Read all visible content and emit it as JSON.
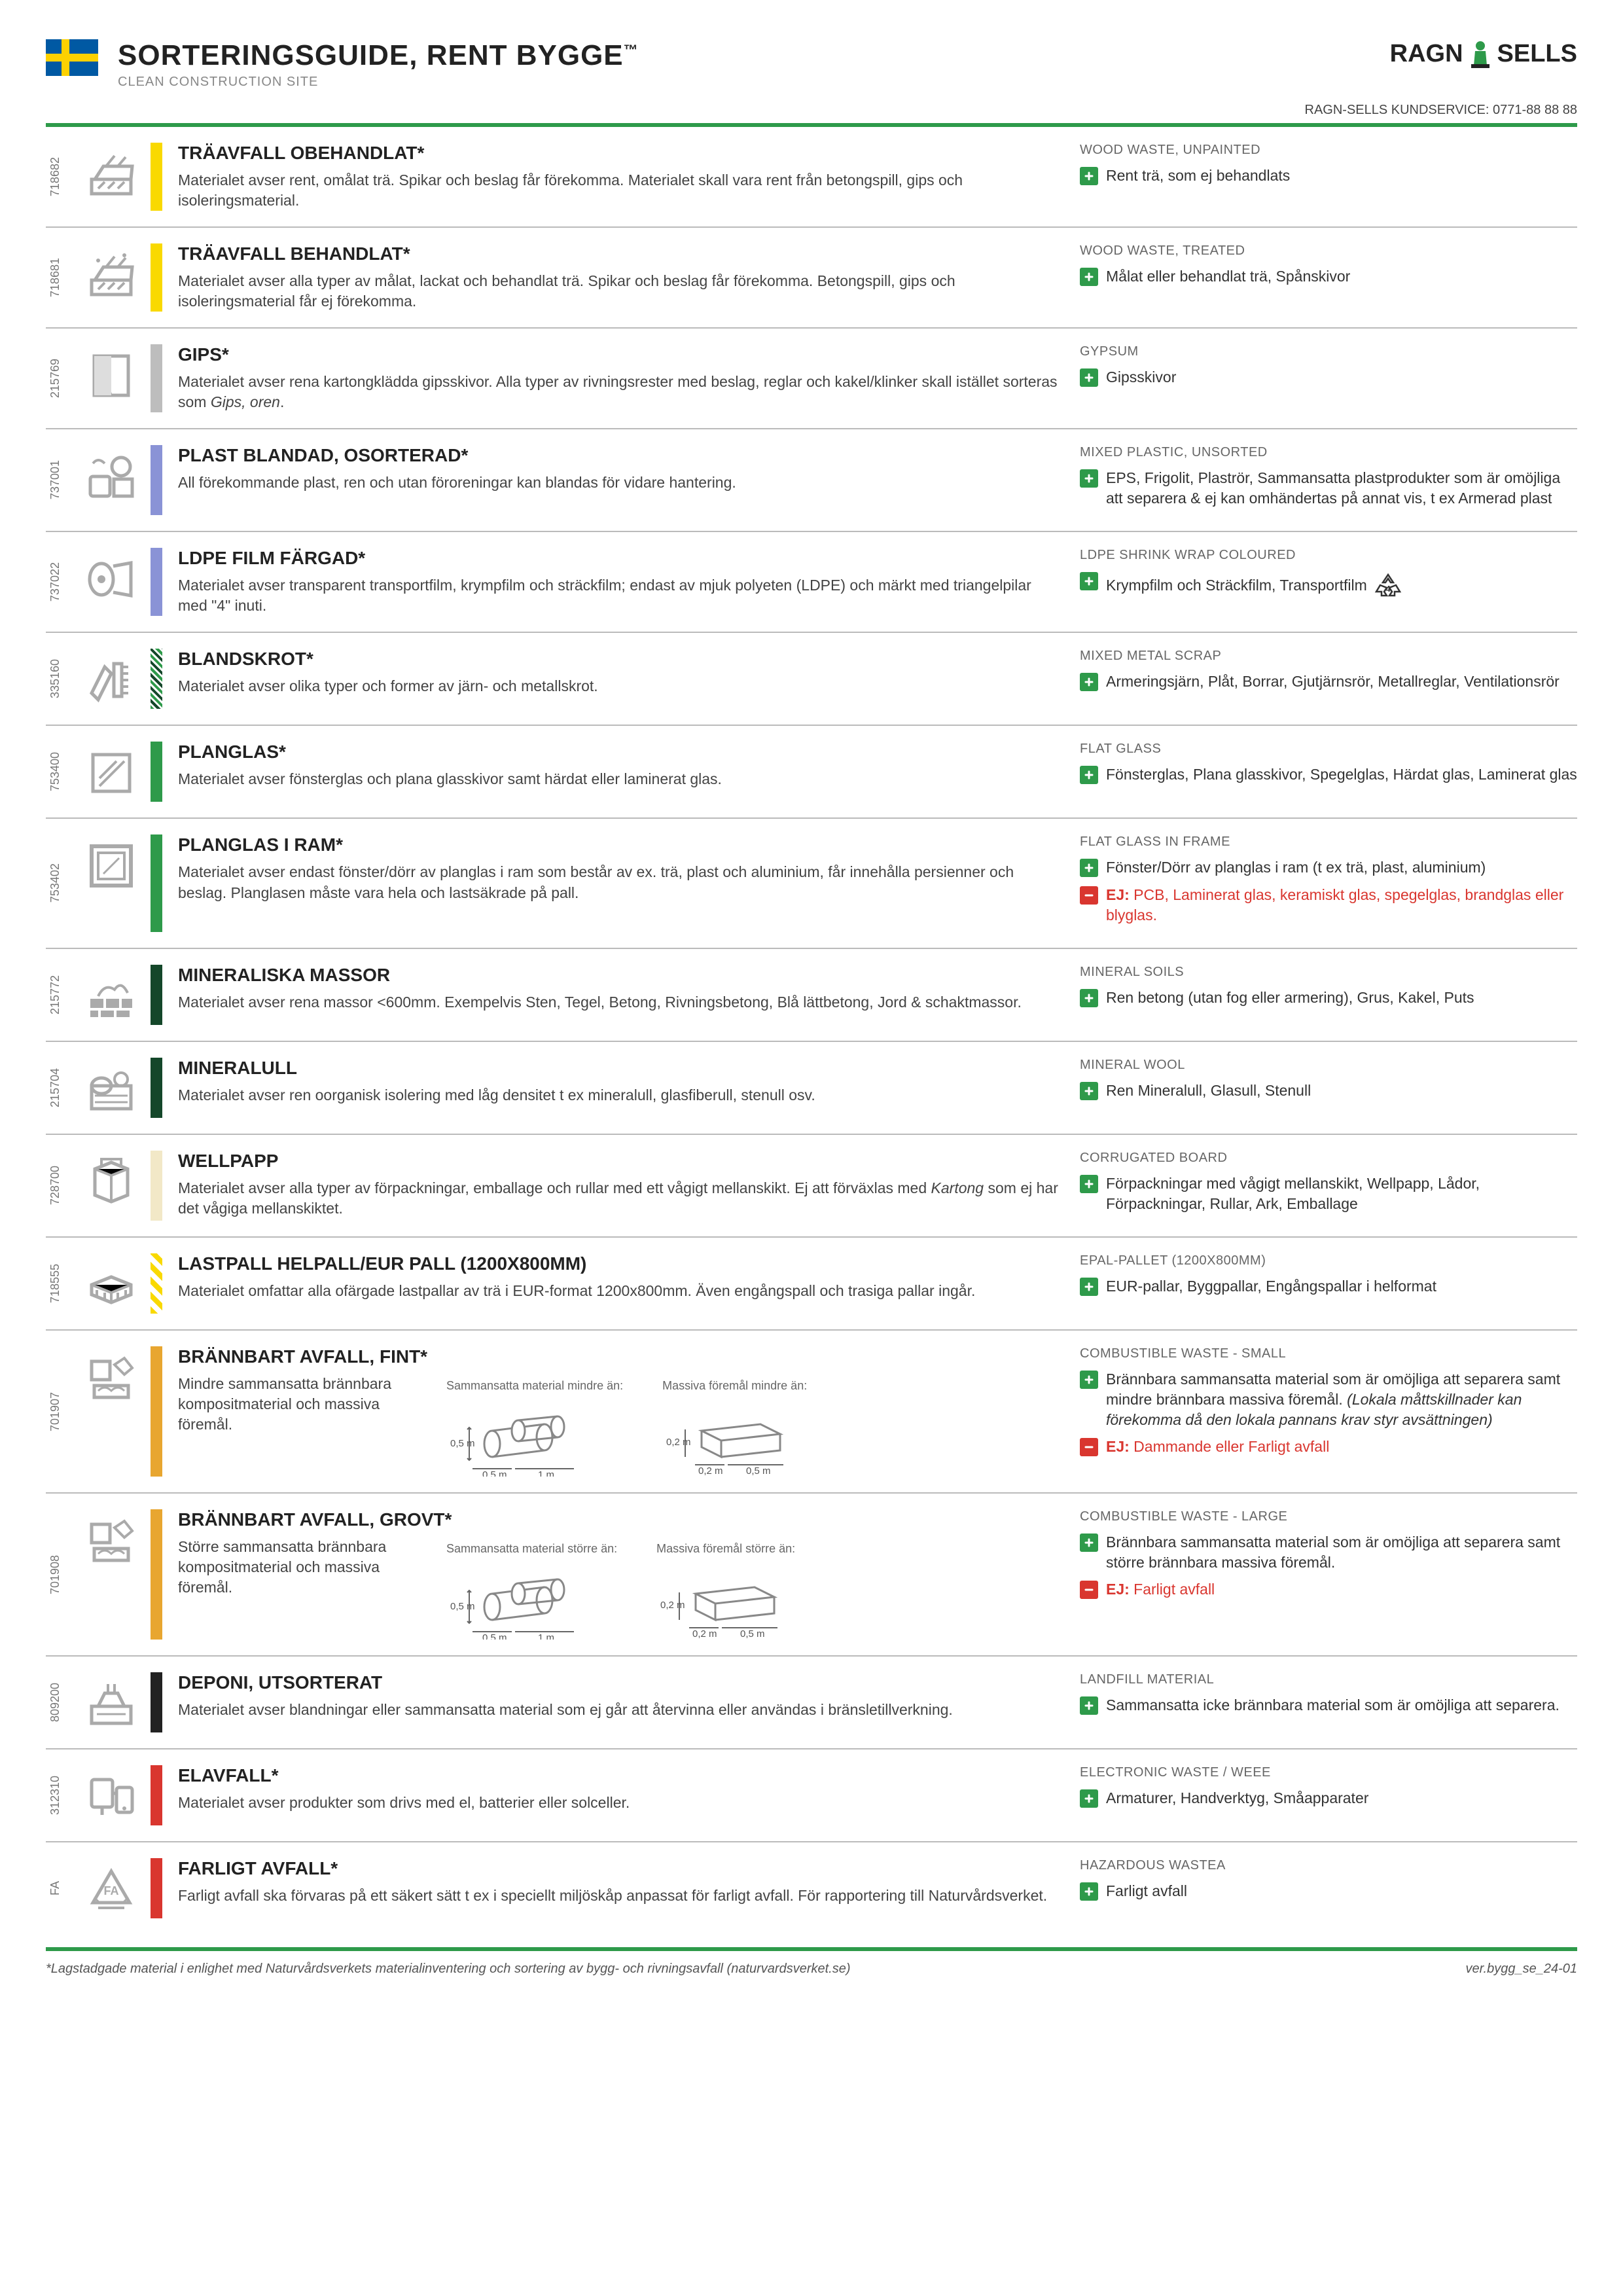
{
  "header": {
    "title": "SORTERINGSGUIDE, RENT BYGGE",
    "tm": "™",
    "subtitle": "CLEAN CONSTRUCTION SITE",
    "logo_text": "RAGN  SELLS",
    "kundservice": "RAGN-SELLS KUNDSERVICE: 0771-88 88 88"
  },
  "colors": {
    "yellow": "#f9d900",
    "gray": "#bdbdbd",
    "blue": "#8a93d6",
    "green": "#2e9a4a",
    "darkgreen": "#14472a",
    "beige": "#f2e8c7",
    "orange": "#e8a630",
    "black": "#222222",
    "red": "#d9362f",
    "hatch_yellow": "repeating-linear-gradient(45deg,#f9d900 0 8px,#fff 8px 16px)",
    "hatch_green": "repeating-linear-gradient(45deg,#2e9a4a 0 4px,#fff 4px,#fff 7px,#14472a 7px,#14472a 11px,#fff 11px,#fff 14px)"
  },
  "rows": [
    {
      "code": "718682",
      "bar": "yellow",
      "icon": "wood",
      "title": "TRÄAVFALL OBEHANDLAT*",
      "desc": "Materialet avser rent, omålat trä. Spikar och beslag får förekomma. Materialet skall vara rent från betongspill, gips och isoleringsmaterial.",
      "eng": "WOOD WASTE, UNPAINTED",
      "plus": "Rent trä, som ej behandlats"
    },
    {
      "code": "718681",
      "bar": "yellow",
      "icon": "wood2",
      "title": "TRÄAVFALL BEHANDLAT*",
      "desc": "Materialet avser alla typer av målat, lackat och behandlat trä. Spikar och beslag får förekomma. Betongspill, gips och isoleringsmaterial får ej förekomma.",
      "eng": "WOOD WASTE, TREATED",
      "plus": "Målat eller behandlat trä, Spånskivor"
    },
    {
      "code": "215769",
      "bar": "gray",
      "icon": "gips",
      "title": "GIPS*",
      "desc": "Materialet avser rena kartongklädda gipsskivor. Alla typer av rivningsrester med beslag, reglar och kakel/klinker skall istället sorteras som <i>Gips, oren</i>.",
      "eng": "GYPSUM",
      "plus": "Gipsskivor"
    },
    {
      "code": "737001",
      "bar": "blue",
      "icon": "plast",
      "title": "PLAST BLANDAD, OSORTERAD*",
      "desc": "All förekommande plast, ren och utan föroreningar kan blandas för vidare hantering.",
      "eng": "MIXED PLASTIC, UNSORTED",
      "plus": "EPS, Frigolit, Plaströr, Sammansatta plastprodukter som är omöjliga att separera & ej kan omhändertas på annat vis, t ex Armerad plast"
    },
    {
      "code": "737022",
      "bar": "blue",
      "icon": "film",
      "title": "LDPE FILM FÄRGAD*",
      "desc": "Materialet avser transparent transportfilm, krympfilm och sträckfilm; endast av mjuk polyeten (LDPE) och märkt med triangelpilar med \"4\" inuti.",
      "eng": "LDPE SHRINK WRAP COLOURED",
      "plus": "Krympfilm och Sträckfilm, Transportfilm",
      "recycle": true
    },
    {
      "code": "335160",
      "bar": "hatch_green",
      "icon": "metal",
      "title": "BLANDSKROT*",
      "desc": "Materialet avser olika typer och former av järn- och metallskrot.",
      "eng": "MIXED METAL SCRAP",
      "plus": "Armeringsjärn, Plåt, Borrar, Gjutjärnsrör, Metallreglar, Ventilationsrör"
    },
    {
      "code": "753400",
      "bar": "green",
      "icon": "glass",
      "title": "PLANGLAS*",
      "desc": "Materialet avser fönsterglas och plana glasskivor samt härdat eller laminerat glas.",
      "eng": "FLAT GLASS",
      "plus": "Fönsterglas, Plana glasskivor, Spegelglas, Härdat glas, Laminerat glas"
    },
    {
      "code": "753402",
      "bar": "green",
      "icon": "glassframe",
      "title": "PLANGLAS I RAM*",
      "desc": "Materialet avser endast fönster/dörr av planglas i ram som består av ex. trä, plast och aluminium, får innehålla persienner och beslag. Planglasen måste vara hela och lastsäkrade på pall.",
      "eng": "FLAT GLASS IN FRAME",
      "plus": "Fönster/Dörr av planglas i ram (t ex trä, plast, aluminium)",
      "ej": "PCB, Laminerat glas, keramiskt glas, spegelglas, brandglas eller blyglas."
    },
    {
      "code": "215772",
      "bar": "darkgreen",
      "icon": "mineral",
      "title": "MINERALISKA MASSOR",
      "desc": "Materialet avser rena massor <600mm. Exempelvis Sten, Tegel, Betong, Rivningsbetong, Blå lättbetong, Jord & schaktmassor.",
      "eng": "MINERAL SOILS",
      "plus": "Ren betong (utan fog eller armering), Grus, Kakel, Puts"
    },
    {
      "code": "215704",
      "bar": "darkgreen",
      "icon": "wool",
      "title": "MINERALULL",
      "desc": "Materialet avser ren oorganisk isolering med låg densitet t ex mineralull, glasfiberull, stenull osv.",
      "eng": "MINERAL WOOL",
      "plus": "Ren Mineralull, Glasull, Stenull"
    },
    {
      "code": "728700",
      "bar": "beige",
      "icon": "wellpapp",
      "title": "WELLPAPP",
      "desc": "Materialet avser alla typer av förpackningar, emballage och rullar med ett vågigt mellanskikt. Ej att förväxlas med <i>Kartong</i> som ej har det vågiga mellanskiktet.",
      "eng": "CORRUGATED BOARD",
      "plus": "Förpackningar med vågigt mellanskikt, Wellpapp, Lådor, Förpackningar, Rullar, Ark, Emballage"
    },
    {
      "code": "718555",
      "bar": "hatch_yellow",
      "icon": "pallet",
      "title": "LASTPALL HELPALL/EUR PALL (1200X800MM)",
      "desc": "Materialet omfattar alla ofärgade lastpallar av trä i EUR-format 1200x800mm. Även engångspall och trasiga pallar ingår.",
      "eng": "EPAL-PALLET (1200X800MM)",
      "plus": "EUR-pallar, Byggpallar, Engångspallar i helformat"
    },
    {
      "code": "701907",
      "bar": "orange",
      "icon": "combust",
      "title": "BRÄNNBART AVFALL, FINT*",
      "desc_left": "Mindre sammansatta brännbara kompositmaterial och massiva föremål.",
      "diag1": "Sammansatta material mindre än:",
      "diag1_dims": [
        "0,5 m",
        "0,5 m",
        "1 m"
      ],
      "diag2": "Massiva föremål mindre än:",
      "diag2_dims": [
        "0,2 m",
        "0,2 m",
        "0,5 m"
      ],
      "eng": "COMBUSTIBLE WASTE - SMALL",
      "plus": "Brännbara sammansatta material som är omöjliga att separera samt mindre brännbara massiva föremål. <i>(Lokala måttskillnader kan förekomma då den lokala pannans krav styr avsättningen)</i>",
      "ej": "Dammande eller Farligt avfall"
    },
    {
      "code": "701908",
      "bar": "orange",
      "icon": "combust",
      "title": "BRÄNNBART AVFALL, GROVT*",
      "desc_left": "Större sammansatta brännbara kompositmaterial och massiva föremål.",
      "diag1": "Sammansatta material större än:",
      "diag1_dims": [
        "0,5 m",
        "0,5 m",
        "1 m"
      ],
      "diag2": "Massiva föremål större än:",
      "diag2_dims": [
        "0,2 m",
        "0,2 m",
        "0,5 m"
      ],
      "eng": "COMBUSTIBLE WASTE - LARGE",
      "plus": "Brännbara sammansatta material som är omöjliga att separera samt större brännbara massiva föremål.",
      "ej": "Farligt avfall"
    },
    {
      "code": "809200",
      "bar": "black",
      "icon": "deponi",
      "title": "DEPONI, UTSORTERAT",
      "desc": "Materialet avser blandningar eller sammansatta material som ej går att återvinna eller användas i bränsletillverkning.",
      "eng": "LANDFILL MATERIAL",
      "plus": "Sammansatta icke brännbara material som är omöjliga att separera."
    },
    {
      "code": "312310",
      "bar": "red",
      "icon": "elavfall",
      "title": "ELAVFALL*",
      "desc": "Materialet avser produkter som drivs med el, batterier eller solceller.",
      "eng": "ELECTRONIC WASTE / WEEE",
      "plus": "Armaturer, Handverktyg, Småapparater"
    },
    {
      "code": "FA",
      "bar": "red",
      "icon": "farligt",
      "title": "FARLIGT AVFALL*",
      "desc": "Farligt avfall ska förvaras på ett säkert sätt t ex i speciellt miljöskåp anpassat för farligt avfall. För rapportering till Naturvårdsverket.",
      "eng": "HAZARDOUS WASTEA",
      "plus": "Farligt avfall"
    }
  ],
  "footer": {
    "left": "*Lagstadgade material i enlighet med Naturvårdsverkets materialinventering och sortering av bygg- och rivningsavfall (naturvardsverket.se)",
    "right": "ver.bygg_se_24-01"
  }
}
